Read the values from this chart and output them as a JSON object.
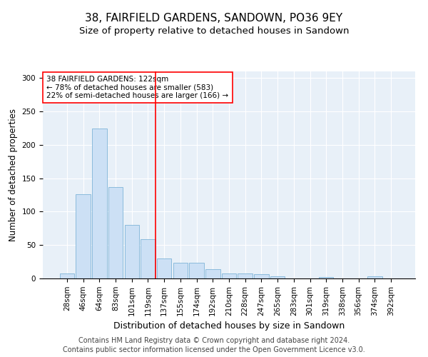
{
  "title": "38, FAIRFIELD GARDENS, SANDOWN, PO36 9EY",
  "subtitle": "Size of property relative to detached houses in Sandown",
  "xlabel": "Distribution of detached houses by size in Sandown",
  "ylabel": "Number of detached properties",
  "categories": [
    "28sqm",
    "46sqm",
    "64sqm",
    "83sqm",
    "101sqm",
    "119sqm",
    "137sqm",
    "155sqm",
    "174sqm",
    "192sqm",
    "210sqm",
    "228sqm",
    "247sqm",
    "265sqm",
    "283sqm",
    "301sqm",
    "319sqm",
    "338sqm",
    "356sqm",
    "374sqm",
    "392sqm"
  ],
  "values": [
    8,
    126,
    225,
    137,
    80,
    59,
    30,
    24,
    24,
    14,
    8,
    8,
    6,
    3,
    0,
    0,
    2,
    0,
    0,
    3,
    0
  ],
  "bar_color": "#cce0f5",
  "bar_edge_color": "#7fb4d8",
  "highlight_line_index": 5,
  "annotation_text": "38 FAIRFIELD GARDENS: 122sqm\n← 78% of detached houses are smaller (583)\n22% of semi-detached houses are larger (166) →",
  "annotation_box_color": "white",
  "annotation_box_edge_color": "red",
  "line_color": "red",
  "ylim": [
    0,
    310
  ],
  "yticks": [
    0,
    50,
    100,
    150,
    200,
    250,
    300
  ],
  "background_color": "#e8f0f8",
  "footer_line1": "Contains HM Land Registry data © Crown copyright and database right 2024.",
  "footer_line2": "Contains public sector information licensed under the Open Government Licence v3.0.",
  "title_fontsize": 11,
  "subtitle_fontsize": 9.5,
  "tick_fontsize": 7.5,
  "ylabel_fontsize": 8.5,
  "xlabel_fontsize": 9,
  "footer_fontsize": 7,
  "annotation_fontsize": 7.5
}
